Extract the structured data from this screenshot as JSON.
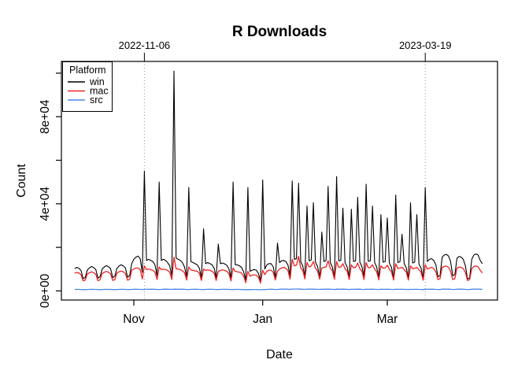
{
  "chart_data": {
    "type": "line",
    "title": "R Downloads",
    "xlabel": "Date",
    "ylabel": "Count",
    "legend_title": "Platform",
    "legend_position": "top-left",
    "grid": false,
    "start_date": "2022-10-04",
    "frequency": "daily",
    "xlim_days": [
      -6.3,
      200.2
    ],
    "ylim": [
      -4200,
      105400
    ],
    "x_ticks": [
      {
        "day": 28,
        "label": "Nov"
      },
      {
        "day": 89,
        "label": "Jan"
      },
      {
        "day": 148,
        "label": "Mar"
      }
    ],
    "y_ticks": [
      {
        "value": 0,
        "label": "0e+00"
      },
      {
        "value": 20000,
        "label": ""
      },
      {
        "value": 40000,
        "label": "4e+04"
      },
      {
        "value": 60000,
        "label": ""
      },
      {
        "value": 80000,
        "label": "8e+04"
      },
      {
        "value": 100000,
        "label": ""
      }
    ],
    "top_annotations": [
      {
        "day": 33,
        "label": "2022-11-06"
      },
      {
        "day": 166,
        "label": "2023-03-19"
      }
    ],
    "series": [
      {
        "name": "win",
        "color": "#000000",
        "values": [
          10200,
          10800,
          10400,
          9300,
          5600,
          6200,
          9600,
          10600,
          11200,
          10700,
          9800,
          5900,
          6500,
          10000,
          11000,
          11600,
          11100,
          10200,
          6100,
          6800,
          10400,
          11400,
          12000,
          11500,
          10600,
          6300,
          7000,
          12500,
          14500,
          15500,
          16000,
          14800,
          8500,
          55000,
          14000,
          14500,
          14000,
          13500,
          12000,
          7000,
          50000,
          14000,
          14500,
          14000,
          13000,
          11500,
          6800,
          101000,
          15000,
          14500,
          14000,
          13000,
          11000,
          6500,
          47500,
          13500,
          13000,
          12500,
          12000,
          10500,
          6000,
          28500,
          12500,
          13000,
          12500,
          12000,
          10500,
          6000,
          21500,
          12500,
          12800,
          12400,
          11800,
          10200,
          5800,
          50000,
          12000,
          12000,
          11500,
          10800,
          8800,
          4800,
          47500,
          9000,
          9500,
          9800,
          9500,
          8000,
          4500,
          51000,
          10000,
          12000,
          12500,
          12500,
          11000,
          6200,
          22000,
          13000,
          13800,
          14000,
          13500,
          11800,
          6500,
          50500,
          14500,
          14800,
          49500,
          13500,
          11500,
          6300,
          39000,
          13800,
          14200,
          40500,
          13200,
          11200,
          6000,
          27000,
          13500,
          14000,
          48000,
          13000,
          11000,
          6000,
          52500,
          13800,
          14000,
          38000,
          13000,
          11000,
          5900,
          37500,
          13500,
          13800,
          43000,
          13200,
          11200,
          6000,
          49000,
          13600,
          13900,
          39000,
          13000,
          11000,
          5800,
          35000,
          13200,
          13500,
          33500,
          12800,
          10800,
          5600,
          44000,
          13000,
          13400,
          26000,
          12600,
          10600,
          5500,
          40500,
          12800,
          13200,
          35000,
          12400,
          10400,
          5400,
          47500,
          13500,
          14500,
          14800,
          14000,
          12000,
          6500,
          7000,
          15500,
          16500,
          16800,
          16000,
          13500,
          7000,
          7500,
          15000,
          15800,
          15500,
          14500,
          11500,
          5500,
          6000,
          14500,
          16500,
          17000,
          16500,
          14000,
          12500
        ]
      },
      {
        "name": "mac",
        "color": "#ee2222",
        "values": [
          8200,
          8500,
          8200,
          7400,
          4600,
          5000,
          7800,
          8400,
          8700,
          8400,
          7600,
          4700,
          5100,
          8000,
          8600,
          8900,
          8600,
          7800,
          4800,
          5200,
          8200,
          8800,
          9100,
          8800,
          8000,
          4900,
          5300,
          9500,
          10000,
          10500,
          10500,
          9800,
          5500,
          11500,
          9800,
          10000,
          9800,
          9400,
          8600,
          5200,
          11000,
          9800,
          10000,
          9800,
          9400,
          8600,
          5200,
          15500,
          10200,
          10000,
          9800,
          9200,
          8400,
          5000,
          11000,
          9600,
          9400,
          9200,
          9000,
          8200,
          4800,
          10000,
          9400,
          9600,
          9400,
          9000,
          8200,
          4800,
          9000,
          9400,
          9600,
          9400,
          9000,
          8000,
          4600,
          10500,
          9000,
          8800,
          8600,
          8200,
          6800,
          3800,
          9000,
          6800,
          7200,
          7400,
          7200,
          6200,
          3600,
          9500,
          7500,
          9000,
          9500,
          9500,
          8500,
          5000,
          9000,
          10000,
          10500,
          10800,
          10400,
          9200,
          5400,
          14500,
          11500,
          11800,
          15800,
          10500,
          9400,
          5500,
          13000,
          11000,
          11400,
          13500,
          10400,
          9200,
          5400,
          10500,
          10800,
          11000,
          13800,
          10400,
          9200,
          5300,
          13500,
          10800,
          11000,
          12500,
          10200,
          9000,
          5200,
          12000,
          10600,
          10800,
          12800,
          10200,
          9000,
          5200,
          13000,
          10600,
          10800,
          12000,
          10000,
          8800,
          5100,
          11500,
          10400,
          10600,
          11800,
          10000,
          8800,
          5000,
          12500,
          10300,
          10500,
          10800,
          9800,
          8600,
          5000,
          11500,
          10200,
          10400,
          10800,
          9700,
          8500,
          4900,
          12000,
          10000,
          10500,
          10800,
          10200,
          8800,
          5200,
          5600,
          10800,
          11200,
          11400,
          10800,
          9000,
          5200,
          5600,
          10500,
          11000,
          10800,
          10200,
          8500,
          4800,
          5200,
          10200,
          11200,
          11500,
          11000,
          9500,
          8200
        ]
      },
      {
        "name": "src",
        "color": "#4a86e8",
        "values": [
          680,
          700,
          690,
          660,
          610,
          580,
          640,
          700,
          720,
          700,
          670,
          620,
          590,
          650,
          690,
          710,
          700,
          670,
          620,
          600,
          660,
          700,
          730,
          710,
          680,
          630,
          600,
          670,
          720,
          750,
          730,
          700,
          650,
          700,
          730,
          740,
          760,
          740,
          710,
          660,
          640,
          700,
          750,
          780,
          760,
          720,
          670,
          800,
          760,
          740,
          760,
          740,
          710,
          660,
          650,
          700,
          720,
          740,
          730,
          700,
          650,
          620,
          680,
          720,
          740,
          720,
          690,
          640,
          610,
          670,
          710,
          730,
          710,
          680,
          630,
          600,
          690,
          700,
          690,
          660,
          610,
          560,
          580,
          600,
          620,
          640,
          630,
          590,
          550,
          650,
          600,
          680,
          720,
          750,
          720,
          660,
          700,
          760,
          800,
          820,
          800,
          740,
          680,
          850,
          820,
          840,
          900,
          800,
          750,
          690,
          820,
          780,
          800,
          830,
          770,
          720,
          670,
          750,
          760,
          780,
          800,
          760,
          720,
          660,
          780,
          740,
          760,
          790,
          750,
          710,
          650,
          760,
          730,
          750,
          780,
          740,
          700,
          650,
          770,
          730,
          750,
          770,
          730,
          690,
          640,
          740,
          710,
          730,
          760,
          720,
          690,
          630,
          750,
          710,
          730,
          740,
          700,
          670,
          620,
          730,
          700,
          720,
          730,
          690,
          660,
          610,
          740,
          720,
          750,
          770,
          740,
          700,
          650,
          660,
          780,
          800,
          810,
          780,
          720,
          650,
          670,
          760,
          790,
          780,
          740,
          690,
          630,
          650,
          750,
          800,
          820,
          800,
          760,
          720
        ]
      }
    ]
  }
}
